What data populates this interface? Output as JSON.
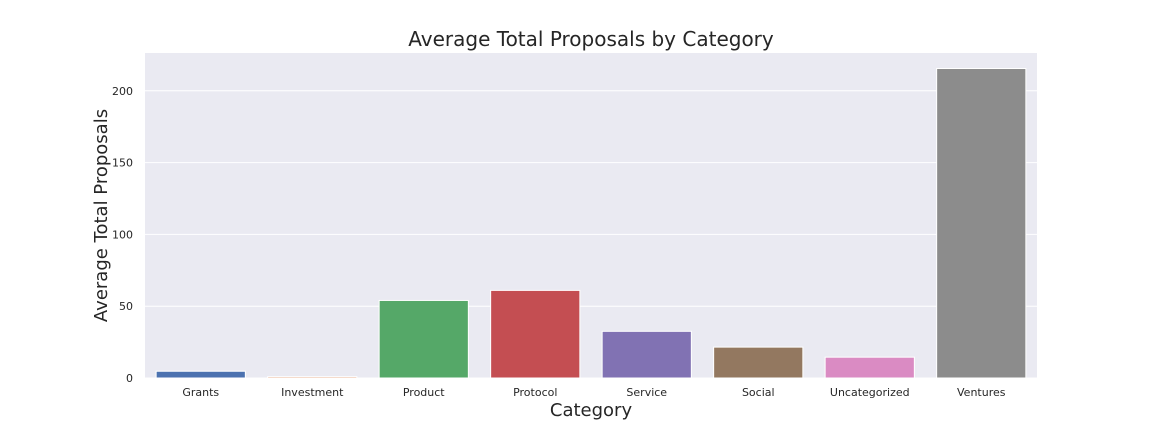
{
  "chart_data": {
    "type": "bar",
    "title": "Average Total Proposals by Category",
    "xlabel": "Category",
    "ylabel": "Average Total Proposals",
    "categories": [
      "Grants",
      "Investment",
      "Product",
      "Protocol",
      "Service",
      "Social",
      "Uncategorized",
      "Ventures"
    ],
    "values": [
      4.7,
      0.9,
      54.0,
      61.0,
      32.5,
      21.5,
      14.5,
      215.5
    ],
    "colors": [
      "#4c72b0",
      "#dd8452",
      "#55a868",
      "#c44e52",
      "#8172b3",
      "#937860",
      "#da8bc3",
      "#8c8c8c"
    ],
    "yticks": [
      0,
      50,
      100,
      150,
      200
    ],
    "ylim": [
      0,
      226.3
    ],
    "grid": true,
    "background": "#eaeaf2"
  }
}
